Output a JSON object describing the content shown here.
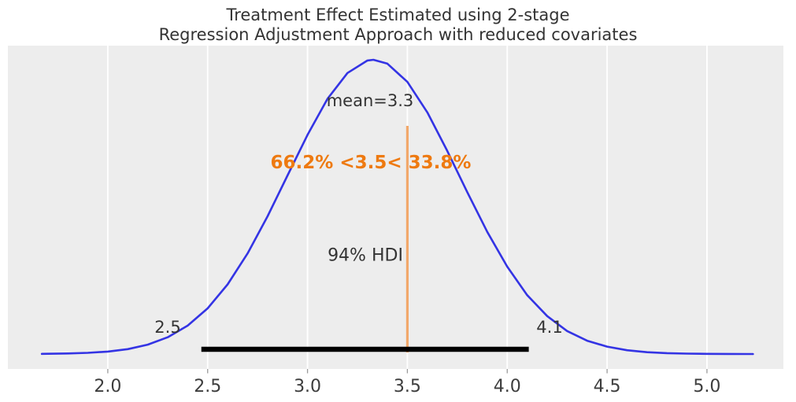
{
  "title": {
    "line1": "Treatment Effect Estimated using 2-stage",
    "line2": "Regression Adjustment Approach with reduced covariates"
  },
  "annotations": {
    "mean_label": "mean=3.3",
    "ref_label": "66.2% <3.5< 33.8%",
    "hdi_label": "94% HDI",
    "hdi_low_label": "2.5",
    "hdi_high_label": "4.1"
  },
  "colors": {
    "plot_background": "#ededed",
    "gridline": "#ffffff",
    "curve": "#3434e4",
    "ref_line": "#f2a86b",
    "ref_text": "#ee7a11",
    "hdi_line": "#000000",
    "text_dark": "#343434",
    "tick_label": "#3d3d3d",
    "tick_mark": "#9a9a9a"
  },
  "chart_data": {
    "type": "line",
    "subtype": "posterior-kde",
    "title": "Treatment Effect Estimated using 2-stage Regression Adjustment Approach with reduced covariates",
    "xlabel": "",
    "ylabel": "",
    "xlim": [
      1.5,
      5.38
    ],
    "x_ticks": [
      2.0,
      2.5,
      3.0,
      3.5,
      4.0,
      4.5,
      5.0
    ],
    "x_tick_labels": [
      "2.0",
      "2.5",
      "3.0",
      "3.5",
      "4.0",
      "4.5",
      "5.0"
    ],
    "grid": true,
    "legend": false,
    "mean": 3.3,
    "ref_value": 3.5,
    "pct_below_ref": 66.2,
    "pct_above_ref": 33.8,
    "hdi": {
      "prob": 0.94,
      "lower": 2.5,
      "upper": 4.1
    },
    "curve": {
      "x": [
        1.67,
        1.7,
        1.8,
        1.9,
        2.0,
        2.1,
        2.2,
        2.3,
        2.4,
        2.5,
        2.6,
        2.7,
        2.8,
        2.9,
        3.0,
        3.1,
        3.2,
        3.3,
        3.33,
        3.4,
        3.5,
        3.6,
        3.7,
        3.8,
        3.9,
        4.0,
        4.1,
        4.2,
        4.3,
        4.4,
        4.5,
        4.6,
        4.7,
        4.8,
        4.9,
        5.0,
        5.1,
        5.2,
        5.23
      ],
      "density": [
        0.0006,
        0.0008,
        0.0018,
        0.0039,
        0.0084,
        0.0167,
        0.0317,
        0.057,
        0.0964,
        0.155,
        0.2366,
        0.342,
        0.468,
        0.607,
        0.745,
        0.867,
        0.955,
        0.9976,
        1.0,
        0.987,
        0.925,
        0.821,
        0.69,
        0.55,
        0.415,
        0.297,
        0.2,
        0.129,
        0.078,
        0.0452,
        0.025,
        0.0128,
        0.0062,
        0.0029,
        0.0013,
        0.0005,
        0.0002,
        0.0001,
        0.0001
      ]
    }
  }
}
